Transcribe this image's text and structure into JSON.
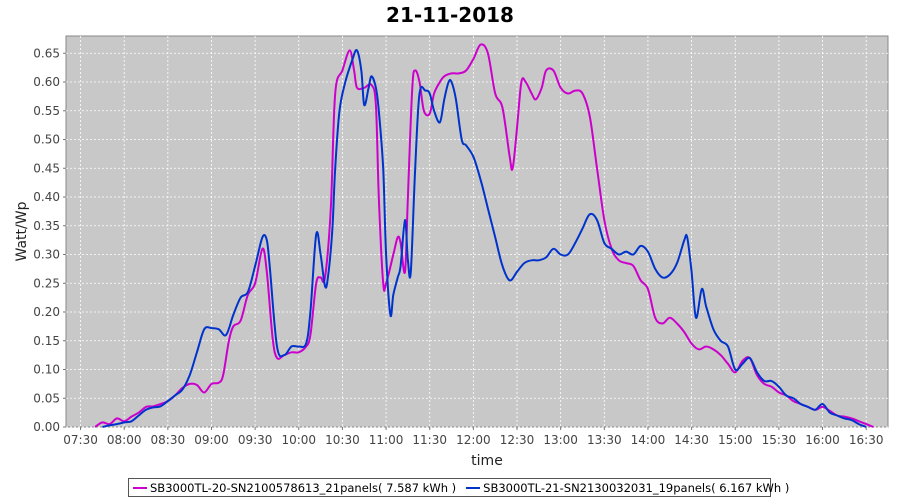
{
  "chart_data": {
    "type": "line",
    "title": "21-11-2018",
    "xlabel": "time",
    "ylabel": "Watt/Wp",
    "x_ticks": [
      "07:30",
      "08:00",
      "08:30",
      "09:00",
      "09:30",
      "10:00",
      "10:30",
      "11:00",
      "11:30",
      "12:00",
      "12:30",
      "13:00",
      "13:30",
      "14:00",
      "14:30",
      "15:00",
      "15:30",
      "16:00",
      "16:30"
    ],
    "y_ticks": [
      "0.00",
      "0.05",
      "0.10",
      "0.15",
      "0.20",
      "0.25",
      "0.30",
      "0.35",
      "0.40",
      "0.45",
      "0.50",
      "0.55",
      "0.60",
      "0.65"
    ],
    "xlim": [
      "07:20",
      "16:45"
    ],
    "ylim": [
      0,
      0.68
    ],
    "grid": true,
    "legend_position": "bottom",
    "series": [
      {
        "name": "SB3000TL-20-SN2100578613_21panels( 7.587 kWh )",
        "color": "#cc00cc",
        "points": [
          [
            "07:40",
            0.0
          ],
          [
            "07:45",
            0.008
          ],
          [
            "07:50",
            0.005
          ],
          [
            "07:55",
            0.015
          ],
          [
            "08:00",
            0.01
          ],
          [
            "08:05",
            0.018
          ],
          [
            "08:10",
            0.025
          ],
          [
            "08:15",
            0.035
          ],
          [
            "08:20",
            0.036
          ],
          [
            "08:25",
            0.04
          ],
          [
            "08:30",
            0.045
          ],
          [
            "08:35",
            0.055
          ],
          [
            "08:40",
            0.068
          ],
          [
            "08:45",
            0.075
          ],
          [
            "08:50",
            0.073
          ],
          [
            "08:55",
            0.06
          ],
          [
            "09:00",
            0.075
          ],
          [
            "09:05",
            0.077
          ],
          [
            "09:08",
            0.09
          ],
          [
            "09:12",
            0.15
          ],
          [
            "09:15",
            0.175
          ],
          [
            "09:20",
            0.185
          ],
          [
            "09:25",
            0.23
          ],
          [
            "09:30",
            0.25
          ],
          [
            "09:35",
            0.31
          ],
          [
            "09:38",
            0.27
          ],
          [
            "09:42",
            0.155
          ],
          [
            "09:45",
            0.12
          ],
          [
            "09:50",
            0.125
          ],
          [
            "09:55",
            0.13
          ],
          [
            "10:00",
            0.13
          ],
          [
            "10:05",
            0.14
          ],
          [
            "10:08",
            0.16
          ],
          [
            "10:12",
            0.25
          ],
          [
            "10:15",
            0.26
          ],
          [
            "10:18",
            0.26
          ],
          [
            "10:22",
            0.38
          ],
          [
            "10:25",
            0.58
          ],
          [
            "10:30",
            0.62
          ],
          [
            "10:35",
            0.655
          ],
          [
            "10:38",
            0.62
          ],
          [
            "10:40",
            0.59
          ],
          [
            "10:45",
            0.59
          ],
          [
            "10:50",
            0.595
          ],
          [
            "10:53",
            0.56
          ],
          [
            "10:55",
            0.4
          ],
          [
            "10:58",
            0.25
          ],
          [
            "11:00",
            0.25
          ],
          [
            "11:05",
            0.3
          ],
          [
            "11:08",
            0.33
          ],
          [
            "11:10",
            0.32
          ],
          [
            "11:13",
            0.27
          ],
          [
            "11:15",
            0.4
          ],
          [
            "11:18",
            0.59
          ],
          [
            "11:20",
            0.62
          ],
          [
            "11:23",
            0.6
          ],
          [
            "11:26",
            0.55
          ],
          [
            "11:30",
            0.545
          ],
          [
            "11:33",
            0.58
          ],
          [
            "11:37",
            0.6
          ],
          [
            "11:40",
            0.61
          ],
          [
            "11:45",
            0.615
          ],
          [
            "11:50",
            0.615
          ],
          [
            "11:55",
            0.62
          ],
          [
            "12:00",
            0.64
          ],
          [
            "12:05",
            0.665
          ],
          [
            "12:10",
            0.65
          ],
          [
            "12:15",
            0.58
          ],
          [
            "12:20",
            0.555
          ],
          [
            "12:25",
            0.47
          ],
          [
            "12:27",
            0.45
          ],
          [
            "12:30",
            0.52
          ],
          [
            "12:33",
            0.6
          ],
          [
            "12:36",
            0.6
          ],
          [
            "12:40",
            0.58
          ],
          [
            "12:43",
            0.57
          ],
          [
            "12:47",
            0.59
          ],
          [
            "12:50",
            0.62
          ],
          [
            "12:55",
            0.62
          ],
          [
            "13:00",
            0.59
          ],
          [
            "13:05",
            0.58
          ],
          [
            "13:10",
            0.585
          ],
          [
            "13:15",
            0.58
          ],
          [
            "13:20",
            0.54
          ],
          [
            "13:25",
            0.45
          ],
          [
            "13:30",
            0.36
          ],
          [
            "13:35",
            0.31
          ],
          [
            "13:40",
            0.29
          ],
          [
            "13:45",
            0.285
          ],
          [
            "13:50",
            0.28
          ],
          [
            "13:55",
            0.255
          ],
          [
            "14:00",
            0.24
          ],
          [
            "14:05",
            0.19
          ],
          [
            "14:10",
            0.18
          ],
          [
            "14:15",
            0.19
          ],
          [
            "14:20",
            0.18
          ],
          [
            "14:25",
            0.165
          ],
          [
            "14:30",
            0.145
          ],
          [
            "14:35",
            0.135
          ],
          [
            "14:40",
            0.14
          ],
          [
            "14:45",
            0.135
          ],
          [
            "14:50",
            0.125
          ],
          [
            "14:55",
            0.11
          ],
          [
            "15:00",
            0.095
          ],
          [
            "15:05",
            0.115
          ],
          [
            "15:10",
            0.12
          ],
          [
            "15:15",
            0.09
          ],
          [
            "15:20",
            0.075
          ],
          [
            "15:25",
            0.07
          ],
          [
            "15:30",
            0.06
          ],
          [
            "15:35",
            0.055
          ],
          [
            "15:40",
            0.045
          ],
          [
            "15:45",
            0.04
          ],
          [
            "15:50",
            0.035
          ],
          [
            "15:55",
            0.03
          ],
          [
            "16:00",
            0.035
          ],
          [
            "16:05",
            0.028
          ],
          [
            "16:10",
            0.02
          ],
          [
            "16:15",
            0.018
          ],
          [
            "16:20",
            0.015
          ],
          [
            "16:25",
            0.01
          ],
          [
            "16:30",
            0.005
          ],
          [
            "16:35",
            0.0
          ]
        ]
      },
      {
        "name": "SB3000TL-21-SN2130032031_19panels( 6.167 kWh )",
        "color": "#0033cc",
        "points": [
          [
            "07:45",
            0.0
          ],
          [
            "07:50",
            0.003
          ],
          [
            "07:55",
            0.005
          ],
          [
            "08:00",
            0.008
          ],
          [
            "08:05",
            0.01
          ],
          [
            "08:10",
            0.02
          ],
          [
            "08:15",
            0.03
          ],
          [
            "08:20",
            0.034
          ],
          [
            "08:25",
            0.036
          ],
          [
            "08:30",
            0.045
          ],
          [
            "08:35",
            0.055
          ],
          [
            "08:40",
            0.065
          ],
          [
            "08:45",
            0.09
          ],
          [
            "08:50",
            0.13
          ],
          [
            "08:55",
            0.17
          ],
          [
            "09:00",
            0.172
          ],
          [
            "09:05",
            0.17
          ],
          [
            "09:10",
            0.16
          ],
          [
            "09:15",
            0.195
          ],
          [
            "09:20",
            0.225
          ],
          [
            "09:25",
            0.235
          ],
          [
            "09:30",
            0.28
          ],
          [
            "09:35",
            0.33
          ],
          [
            "09:38",
            0.325
          ],
          [
            "09:40",
            0.28
          ],
          [
            "09:45",
            0.14
          ],
          [
            "09:50",
            0.125
          ],
          [
            "09:55",
            0.14
          ],
          [
            "10:00",
            0.14
          ],
          [
            "10:05",
            0.145
          ],
          [
            "10:08",
            0.2
          ],
          [
            "10:12",
            0.335
          ],
          [
            "10:15",
            0.3
          ],
          [
            "10:18",
            0.245
          ],
          [
            "10:20",
            0.26
          ],
          [
            "10:23",
            0.34
          ],
          [
            "10:25",
            0.45
          ],
          [
            "10:28",
            0.55
          ],
          [
            "10:32",
            0.6
          ],
          [
            "10:37",
            0.64
          ],
          [
            "10:40",
            0.655
          ],
          [
            "10:43",
            0.62
          ],
          [
            "10:45",
            0.56
          ],
          [
            "10:48",
            0.59
          ],
          [
            "10:50",
            0.61
          ],
          [
            "10:53",
            0.59
          ],
          [
            "10:55",
            0.55
          ],
          [
            "10:58",
            0.45
          ],
          [
            "11:00",
            0.3
          ],
          [
            "11:03",
            0.195
          ],
          [
            "11:05",
            0.23
          ],
          [
            "11:08",
            0.26
          ],
          [
            "11:10",
            0.28
          ],
          [
            "11:13",
            0.36
          ],
          [
            "11:15",
            0.29
          ],
          [
            "11:17",
            0.27
          ],
          [
            "11:20",
            0.45
          ],
          [
            "11:23",
            0.58
          ],
          [
            "11:27",
            0.585
          ],
          [
            "11:30",
            0.58
          ],
          [
            "11:33",
            0.55
          ],
          [
            "11:37",
            0.53
          ],
          [
            "11:40",
            0.57
          ],
          [
            "11:43",
            0.6
          ],
          [
            "11:45",
            0.6
          ],
          [
            "11:48",
            0.57
          ],
          [
            "11:52",
            0.5
          ],
          [
            "11:55",
            0.49
          ],
          [
            "12:00",
            0.47
          ],
          [
            "12:05",
            0.43
          ],
          [
            "12:10",
            0.38
          ],
          [
            "12:15",
            0.33
          ],
          [
            "12:20",
            0.28
          ],
          [
            "12:25",
            0.255
          ],
          [
            "12:30",
            0.27
          ],
          [
            "12:35",
            0.285
          ],
          [
            "12:40",
            0.29
          ],
          [
            "12:45",
            0.29
          ],
          [
            "12:50",
            0.295
          ],
          [
            "12:55",
            0.31
          ],
          [
            "13:00",
            0.3
          ],
          [
            "13:05",
            0.3
          ],
          [
            "13:10",
            0.32
          ],
          [
            "13:15",
            0.345
          ],
          [
            "13:20",
            0.37
          ],
          [
            "13:25",
            0.36
          ],
          [
            "13:30",
            0.32
          ],
          [
            "13:35",
            0.31
          ],
          [
            "13:40",
            0.3
          ],
          [
            "13:45",
            0.305
          ],
          [
            "13:50",
            0.3
          ],
          [
            "13:55",
            0.315
          ],
          [
            "14:00",
            0.305
          ],
          [
            "14:05",
            0.275
          ],
          [
            "14:10",
            0.26
          ],
          [
            "14:15",
            0.265
          ],
          [
            "14:20",
            0.285
          ],
          [
            "14:25",
            0.325
          ],
          [
            "14:27",
            0.33
          ],
          [
            "14:30",
            0.27
          ],
          [
            "14:33",
            0.19
          ],
          [
            "14:37",
            0.24
          ],
          [
            "14:40",
            0.21
          ],
          [
            "14:45",
            0.17
          ],
          [
            "14:50",
            0.15
          ],
          [
            "14:55",
            0.14
          ],
          [
            "15:00",
            0.1
          ],
          [
            "15:05",
            0.11
          ],
          [
            "15:10",
            0.12
          ],
          [
            "15:15",
            0.095
          ],
          [
            "15:20",
            0.08
          ],
          [
            "15:25",
            0.08
          ],
          [
            "15:30",
            0.07
          ],
          [
            "15:35",
            0.055
          ],
          [
            "15:40",
            0.05
          ],
          [
            "15:45",
            0.04
          ],
          [
            "15:50",
            0.035
          ],
          [
            "15:55",
            0.03
          ],
          [
            "16:00",
            0.04
          ],
          [
            "16:05",
            0.025
          ],
          [
            "16:10",
            0.02
          ],
          [
            "16:15",
            0.015
          ],
          [
            "16:20",
            0.012
          ],
          [
            "16:25",
            0.005
          ],
          [
            "16:30",
            0.0
          ]
        ]
      }
    ]
  }
}
